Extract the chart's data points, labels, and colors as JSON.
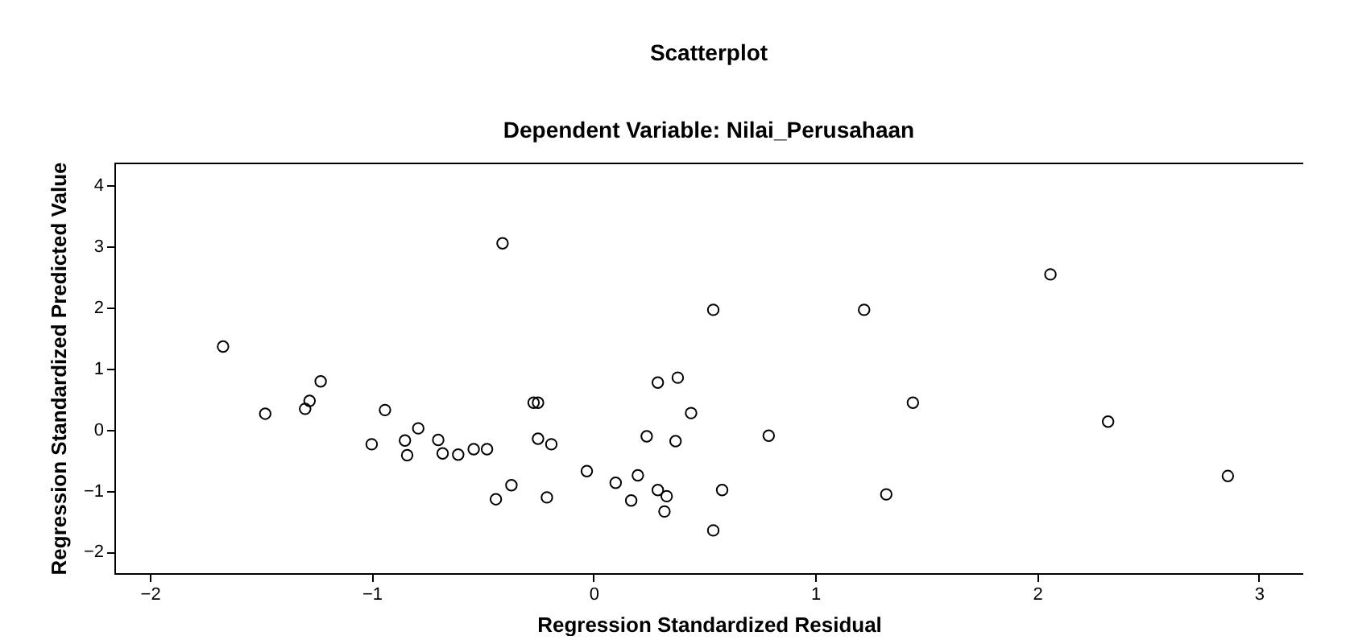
{
  "chart_data": {
    "type": "scatter",
    "title": "Scatterplot",
    "subtitle": "Dependent Variable: Nilai_Perusahaan",
    "xlabel": "Regression Standardized Residual",
    "ylabel": "Regression Standardized Predicted Value",
    "x": [
      -1.67,
      -1.23,
      -1.28,
      -1.3,
      -1.48,
      -0.94,
      -1.0,
      -0.85,
      -0.84,
      -0.79,
      -0.7,
      -0.68,
      -0.61,
      -0.54,
      -0.48,
      -0.44,
      -0.37,
      -0.41,
      0.54,
      1.22,
      0.29,
      0.38,
      -0.27,
      -0.25,
      0.44,
      -0.25,
      -0.19,
      0.24,
      0.37,
      0.79,
      -0.21,
      -0.03,
      0.1,
      0.2,
      0.17,
      0.29,
      0.33,
      0.32,
      0.58,
      0.54,
      1.32,
      2.06,
      1.44,
      2.32,
      2.86
    ],
    "series": [
      {
        "color": "#000000",
        "values": [
          1.36,
          0.79,
          0.47,
          0.34,
          0.26,
          0.32,
          -0.24,
          -0.18,
          -0.42,
          0.02,
          -0.17,
          -0.39,
          -0.41,
          -0.32,
          -0.32,
          -1.14,
          -0.91,
          3.05,
          1.96,
          1.96,
          0.77,
          0.85,
          0.44,
          0.44,
          0.27,
          -0.15,
          -0.24,
          -0.11,
          -0.19,
          -0.1,
          -1.11,
          -0.68,
          -0.87,
          -0.75,
          -1.16,
          -0.99,
          -1.09,
          -1.34,
          -0.99,
          -1.65,
          -1.06,
          2.54,
          0.44,
          0.13,
          -0.76
        ]
      }
    ],
    "xlim": [
      -2.16,
      3.2
    ],
    "xticks": [
      -2,
      -1,
      0,
      1,
      2,
      3
    ],
    "ylim": [
      -2.35,
      4.37
    ],
    "yticks": [
      -2,
      -1,
      0,
      1,
      2,
      3,
      4
    ],
    "marker": "circle",
    "grid": false
  }
}
